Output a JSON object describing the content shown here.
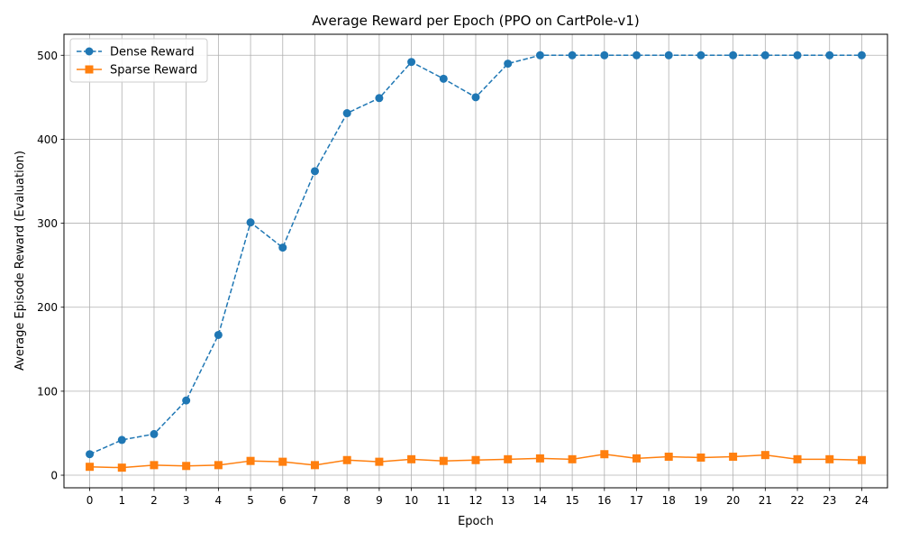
{
  "chart_data": {
    "type": "line",
    "title": "Average Reward per Epoch (PPO on CartPole-v1)",
    "xlabel": "Epoch",
    "ylabel": "Average Episode Reward (Evaluation)",
    "x": [
      0,
      1,
      2,
      3,
      4,
      5,
      6,
      7,
      8,
      9,
      10,
      11,
      12,
      13,
      14,
      15,
      16,
      17,
      18,
      19,
      20,
      21,
      22,
      23,
      24
    ],
    "x_tick_labels": [
      "0",
      "1",
      "2",
      "3",
      "4",
      "5",
      "6",
      "7",
      "8",
      "9",
      "10",
      "11",
      "12",
      "13",
      "14",
      "15",
      "16",
      "17",
      "18",
      "19",
      "20",
      "21",
      "22",
      "23",
      "24"
    ],
    "y_ticks": [
      0,
      100,
      200,
      300,
      400,
      500
    ],
    "y_tick_labels": [
      "0",
      "100",
      "200",
      "300",
      "400",
      "500"
    ],
    "xlim": [
      -0.8,
      24.8
    ],
    "ylim": [
      -15,
      525
    ],
    "grid": true,
    "legend_position": "top-left",
    "series": [
      {
        "name": "Dense Reward",
        "color": "#1f77b4",
        "line_style": "dashed",
        "marker": "circle",
        "values": [
          25,
          42,
          49,
          89,
          167,
          301,
          271,
          362,
          431,
          449,
          492,
          472,
          450,
          490,
          500,
          500,
          500,
          500,
          500,
          500,
          500,
          500,
          500,
          500,
          500
        ]
      },
      {
        "name": "Sparse Reward",
        "color": "#ff7f0e",
        "line_style": "solid",
        "marker": "square",
        "values": [
          10,
          9,
          12,
          11,
          12,
          17,
          16,
          12,
          18,
          16,
          19,
          17,
          18,
          19,
          20,
          19,
          25,
          20,
          22,
          21,
          22,
          24,
          19,
          19,
          18
        ]
      }
    ]
  }
}
